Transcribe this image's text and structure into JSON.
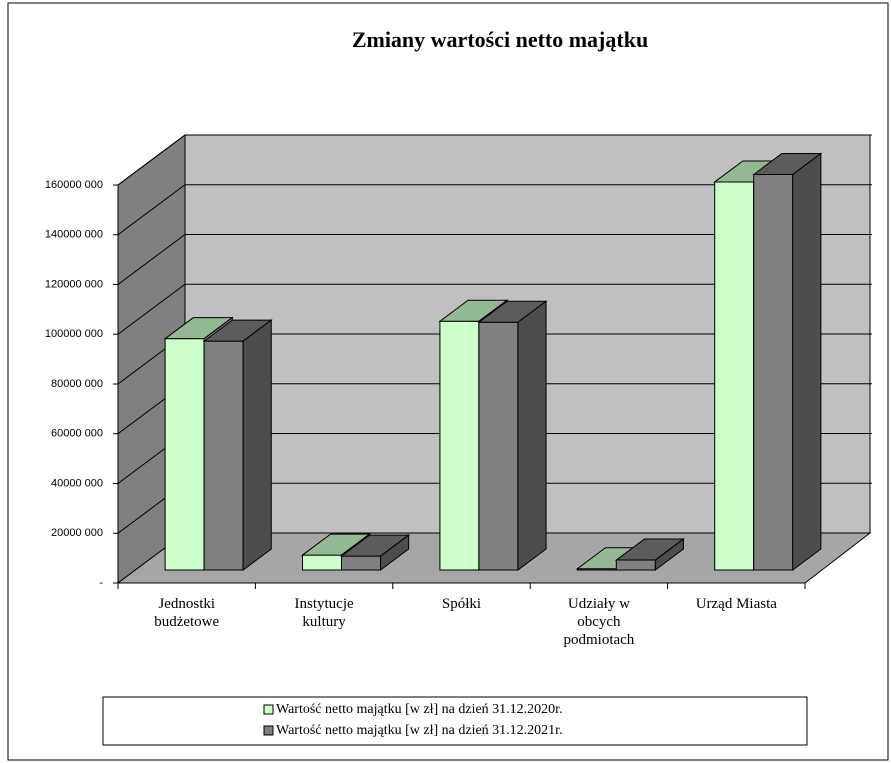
{
  "chart_data": {
    "type": "bar3d",
    "title": "Zmiany wartości netto majątku",
    "categories": [
      "Jednostki\nbudżetowe",
      "Instytucje\nkultury",
      "Spółki",
      "Udziały w\nobcych\npodmiotach",
      "Urząd Miasta"
    ],
    "series": [
      {
        "name": "Wartość netto majątku [w zł] na dzień 31.12.2020r.",
        "color": "#ccffcc",
        "values": [
          93000000,
          6000000,
          100000000,
          500000,
          156000000
        ]
      },
      {
        "name": "Wartość netto majątku [w zł] na dzień 31.12.2021r.",
        "color": "#808080",
        "values": [
          92000000,
          5600000,
          99600000,
          4000000,
          159000000
        ]
      }
    ],
    "ylim": [
      0,
      160000000
    ],
    "yticks": [
      {
        "value": 0,
        "label": "-"
      },
      {
        "value": 20000000,
        "label": "20000 000"
      },
      {
        "value": 40000000,
        "label": "40000 000"
      },
      {
        "value": 60000000,
        "label": "60000 000"
      },
      {
        "value": 80000000,
        "label": "80000 000"
      },
      {
        "value": 100000000,
        "label": "100000 000"
      },
      {
        "value": 120000000,
        "label": "120000 000"
      },
      {
        "value": 140000000,
        "label": "140000 000"
      },
      {
        "value": 160000000,
        "label": "160000 000"
      }
    ],
    "grid": true
  }
}
